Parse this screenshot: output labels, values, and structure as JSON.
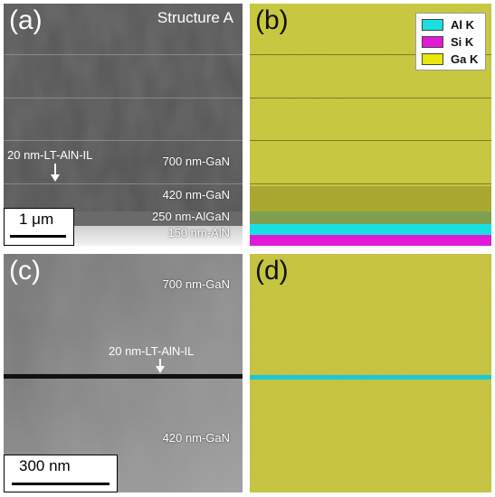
{
  "panel_a": {
    "label": "(a)",
    "title": "Structure A",
    "interlayer": "20 nm-LT-AlN-IL",
    "layers": [
      "700 nm-GaN",
      "420 nm-GaN",
      "250 nm-AlGaN",
      "150 nm-AlN"
    ],
    "scale": "1 μm"
  },
  "panel_b": {
    "label": "(b)",
    "legend": [
      {
        "name": "Al K",
        "color": "#19e0e0"
      },
      {
        "name": "Si K",
        "color": "#e21ad6"
      },
      {
        "name": "Ga K",
        "color": "#e8e80a"
      }
    ]
  },
  "panel_c": {
    "label": "(c)",
    "top_layer": "700 nm-GaN",
    "interlayer": "20 nm-LT-AlN-IL",
    "bottom_layer": "420 nm-GaN",
    "scale": "300 nm"
  },
  "panel_d": {
    "label": "(d)"
  }
}
